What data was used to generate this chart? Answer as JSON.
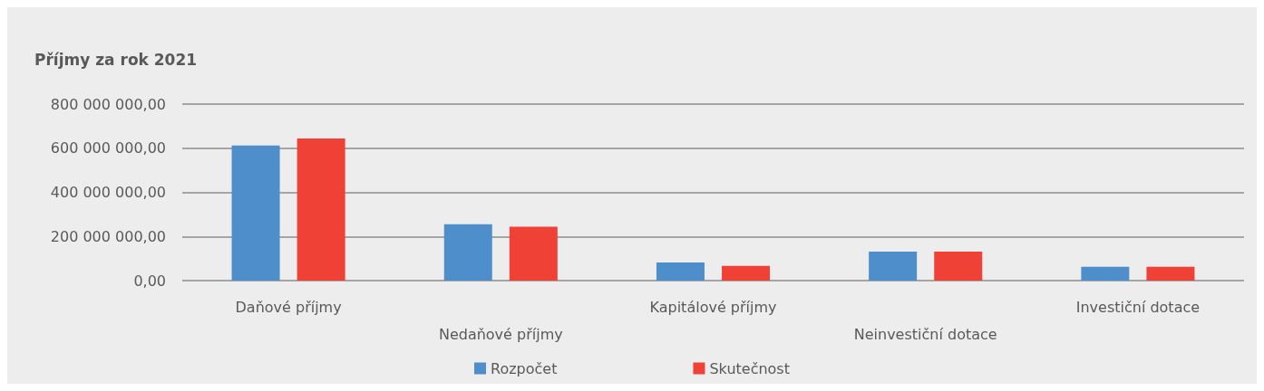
{
  "chart_data": {
    "type": "bar",
    "title": "Příjmy za rok 2021",
    "categories": [
      "Daňové příjmy",
      "Nedaňové příjmy",
      "Kapitálové příjmy",
      "Neinvestiční dotace",
      "Investiční dotace"
    ],
    "series": [
      {
        "name": "Rozpočet",
        "color": "#4e8ecb",
        "values": [
          612000000,
          255000000,
          82000000,
          131000000,
          63000000
        ]
      },
      {
        "name": "Skutečnost",
        "color": "#ef4136",
        "values": [
          644000000,
          244000000,
          67000000,
          131000000,
          63000000
        ]
      }
    ],
    "ylim": [
      0,
      800000000
    ],
    "yticks": [
      {
        "value": 0,
        "label": "0,00"
      },
      {
        "value": 200000000,
        "label": "200 000 000,00"
      },
      {
        "value": 400000000,
        "label": "400 000 000,00"
      },
      {
        "value": 600000000,
        "label": "600 000 000,00"
      },
      {
        "value": 800000000,
        "label": "800 000 000,00"
      }
    ],
    "grid": "y",
    "legend": "bottom"
  }
}
